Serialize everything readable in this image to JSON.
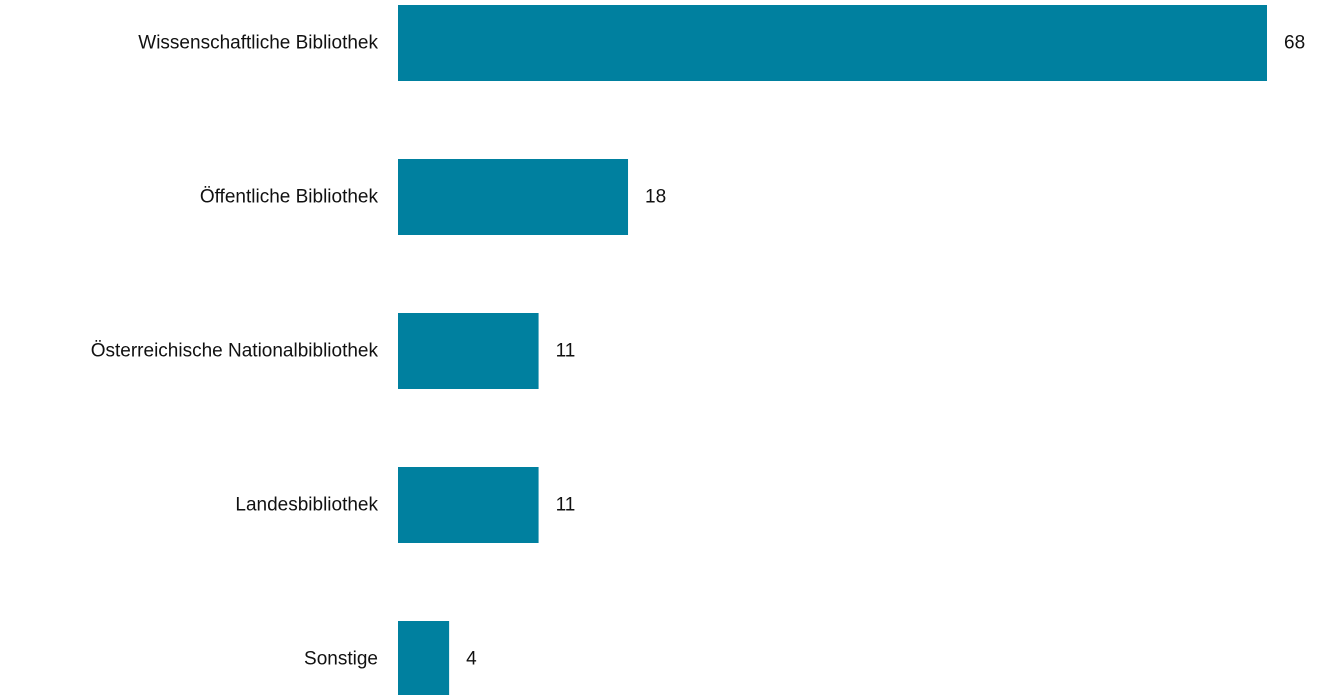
{
  "chart_data": {
    "type": "bar",
    "orientation": "horizontal",
    "categories": [
      "Wissenschaftliche Bibliothek",
      "Öffentliche Bibliothek",
      "Österreichische Nationalbibliothek",
      "Landesbibliothek",
      "Sonstige"
    ],
    "values": [
      68,
      18,
      11,
      11,
      4
    ],
    "value_labels": [
      "68",
      "18",
      "11",
      "11",
      "4"
    ],
    "title": "",
    "xlabel": "",
    "ylabel": "",
    "xlim": [
      0,
      68
    ],
    "grid": false,
    "legend": "none",
    "bar_color": "#00809f"
  }
}
